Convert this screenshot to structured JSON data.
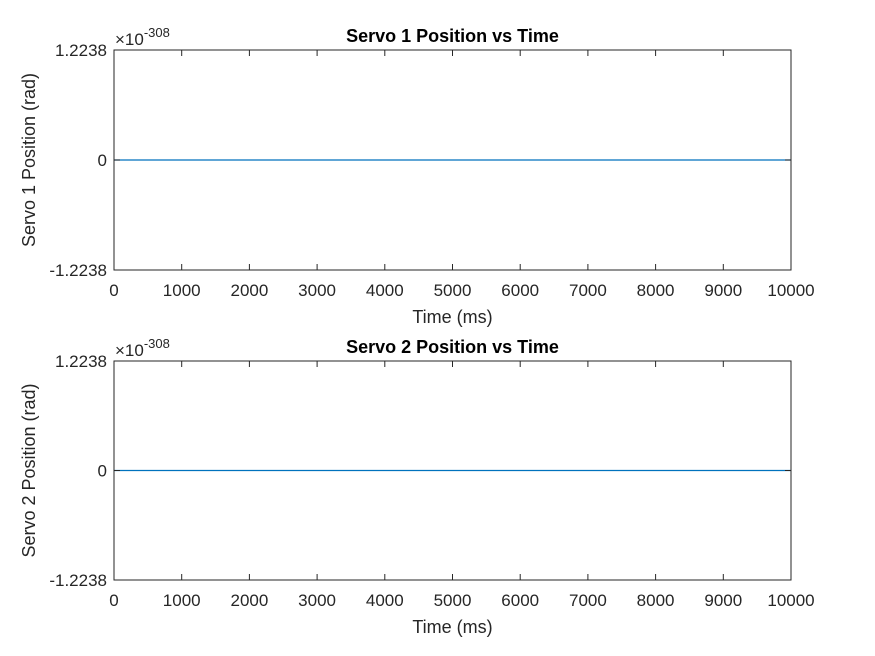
{
  "chart_data": [
    {
      "type": "line",
      "title": "Servo 1 Position vs Time",
      "xlabel": "Time (ms)",
      "ylabel": "Servo 1 Position (rad)",
      "xlim": [
        0,
        10000
      ],
      "ylim": [
        -1.2238e-308,
        1.2238e-308
      ],
      "x_ticks": [
        "0",
        "1000",
        "2000",
        "3000",
        "4000",
        "5000",
        "6000",
        "7000",
        "8000",
        "9000",
        "10000"
      ],
      "y_ticks": [
        "-1.2238",
        "0",
        "1.2238"
      ],
      "y_exponent": {
        "prefix": "×10",
        "power": "-308"
      },
      "series": [
        {
          "color": "#0072BD",
          "x": [
            0,
            10000
          ],
          "y": [
            0,
            0
          ]
        }
      ],
      "grid": false,
      "legend": "none"
    },
    {
      "type": "line",
      "title": "Servo 2 Position vs Time",
      "xlabel": "Time (ms)",
      "ylabel": "Servo 2 Position (rad)",
      "xlim": [
        0,
        10000
      ],
      "ylim": [
        -1.2238e-308,
        1.2238e-308
      ],
      "x_ticks": [
        "0",
        "1000",
        "2000",
        "3000",
        "4000",
        "5000",
        "6000",
        "7000",
        "8000",
        "9000",
        "10000"
      ],
      "y_ticks": [
        "-1.2238",
        "0",
        "1.2238"
      ],
      "y_exponent": {
        "prefix": "×10",
        "power": "-308"
      },
      "series": [
        {
          "color": "#0072BD",
          "x": [
            0,
            10000
          ],
          "y": [
            0,
            0
          ]
        }
      ],
      "grid": false,
      "legend": "none"
    }
  ]
}
